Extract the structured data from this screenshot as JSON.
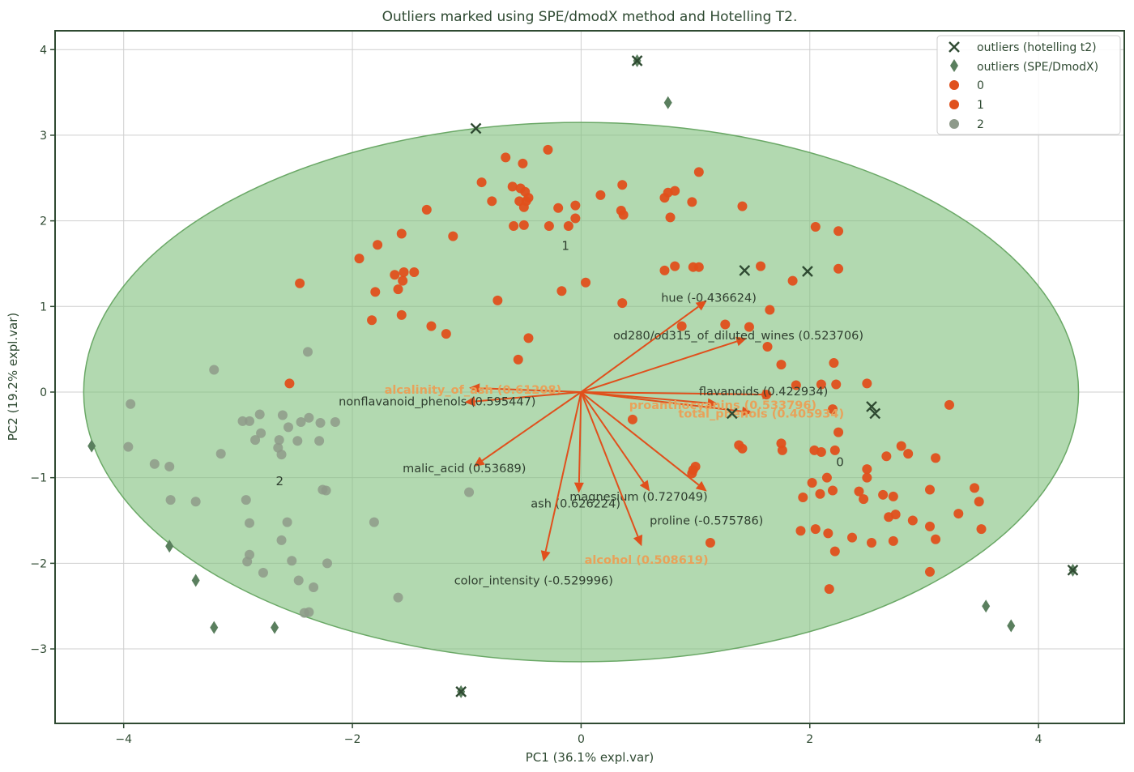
{
  "chart_data": {
    "type": "scatter",
    "title": "Outliers marked using SPE/dmodX method and Hotelling T2.",
    "xlabel": "PC1 (36.1% expl.var)",
    "ylabel": "PC2 (19.2% expl.var)",
    "xlim": [
      -4.6,
      4.75
    ],
    "ylim": [
      -3.87,
      4.22
    ],
    "xticks": [
      -4,
      -2,
      0,
      2,
      4
    ],
    "yticks": [
      -3,
      -2,
      -1,
      0,
      1,
      2,
      3,
      4
    ],
    "xtick_labels": [
      "−4",
      "−2",
      "0",
      "2",
      "4"
    ],
    "ytick_labels": [
      "−3",
      "−2",
      "−1",
      "0",
      "1",
      "2",
      "3",
      "4"
    ],
    "grid": true,
    "legend_position": "top-right",
    "colors": {
      "class_0": "#e0501c",
      "class_1": "#e0501c",
      "class_2": "#8e9a8a",
      "arrow": "#e0501c",
      "outlier_marker": "#2f4a32",
      "spe_marker": "#5a7f5e",
      "ellipse_fill": "#7fbf7b",
      "axes": "#2f4a32",
      "label_orange": "#e8a25a"
    },
    "legend": [
      {
        "label": "outliers (hotelling t2)",
        "marker": "x"
      },
      {
        "label": "outliers (SPE/DmodX)",
        "marker": "diamond"
      },
      {
        "label": "0",
        "marker": "circle-orange"
      },
      {
        "label": "1",
        "marker": "circle-orange"
      },
      {
        "label": "2",
        "marker": "circle-grey"
      }
    ],
    "ellipse": {
      "center": [
        0,
        0
      ],
      "width": 8.7,
      "height": 6.3
    },
    "class_labels": [
      {
        "text": "0",
        "x": 2.23,
        "y": -0.82
      },
      {
        "text": "1",
        "x": -0.17,
        "y": 1.71
      },
      {
        "text": "2",
        "x": -2.67,
        "y": -1.04
      }
    ],
    "loadings": [
      {
        "label": "hue (-0.436624)",
        "x": 1.1,
        "y": 1.07,
        "lx": 0.7,
        "ly": 1.1,
        "color": "dark"
      },
      {
        "label": "od280/od315_of_diluted_wines (0.523706)",
        "x": 1.45,
        "y": 0.63,
        "lx": 0.28,
        "ly": 0.66,
        "color": "dark"
      },
      {
        "label": "flavanoids (0.422934)",
        "x": 1.68,
        "y": -0.03,
        "lx": 1.03,
        "ly": 0.01,
        "color": "dark"
      },
      {
        "label": "total_phenols (0.405934)",
        "x": 1.5,
        "y": -0.24,
        "lx": 0.85,
        "ly": -0.25,
        "color": "orange"
      },
      {
        "label": "proanthocyanins (0.533796)",
        "x": 1.2,
        "y": -0.14,
        "lx": 0.42,
        "ly": -0.15,
        "color": "orange"
      },
      {
        "label": "alcalinity_of_ash (0.61208)",
        "x": -0.98,
        "y": 0.05,
        "lx": -1.72,
        "ly": 0.03,
        "color": "orange"
      },
      {
        "label": "nonflavanoid_phenols (0.595447)",
        "x": -1.02,
        "y": -0.12,
        "lx": -2.12,
        "ly": -0.11,
        "color": "dark"
      },
      {
        "label": "malic_acid (0.53689)",
        "x": -0.94,
        "y": -0.87,
        "lx": -1.56,
        "ly": -0.89,
        "color": "dark"
      },
      {
        "label": "ash (0.626224)",
        "x": -0.02,
        "y": -1.18,
        "lx": -0.44,
        "ly": -1.3,
        "color": "dark"
      },
      {
        "label": "magnesium (0.727049)",
        "x": 0.6,
        "y": -1.16,
        "lx": -0.1,
        "ly": -1.22,
        "color": "dark"
      },
      {
        "label": "proline (-0.575786)",
        "x": 1.1,
        "y": -1.16,
        "lx": 0.6,
        "ly": -1.5,
        "color": "dark"
      },
      {
        "label": "alcohol (0.508619)",
        "x": 0.53,
        "y": -1.8,
        "lx": 0.03,
        "ly": -1.96,
        "color": "orange"
      },
      {
        "label": "color_intensity (-0.529996)",
        "x": -0.33,
        "y": -1.98,
        "lx": -1.11,
        "ly": -2.2,
        "color": "dark"
      }
    ],
    "outliers_hotelling_t2": [
      {
        "x": -0.92,
        "y": 3.08
      },
      {
        "x": 0.49,
        "y": 3.87
      },
      {
        "x": 1.43,
        "y": 1.42
      },
      {
        "x": 1.98,
        "y": 1.41
      },
      {
        "x": 1.32,
        "y": -0.25
      },
      {
        "x": 2.54,
        "y": -0.17
      },
      {
        "x": 2.57,
        "y": -0.25
      },
      {
        "x": -1.05,
        "y": -3.5
      },
      {
        "x": 4.3,
        "y": -2.08
      }
    ],
    "outliers_spe_dmodx": [
      {
        "x": 0.49,
        "y": 3.87
      },
      {
        "x": 0.76,
        "y": 3.38
      },
      {
        "x": -4.28,
        "y": -0.63
      },
      {
        "x": -3.6,
        "y": -1.8
      },
      {
        "x": -3.37,
        "y": -2.2
      },
      {
        "x": -3.21,
        "y": -2.75
      },
      {
        "x": -2.68,
        "y": -2.75
      },
      {
        "x": -1.05,
        "y": -3.5
      },
      {
        "x": 4.3,
        "y": -2.08
      },
      {
        "x": 3.54,
        "y": -2.5
      },
      {
        "x": 3.76,
        "y": -2.73
      }
    ],
    "series": [
      {
        "name": "0",
        "points": [
          {
            "x": 2.5,
            "y": 0.1
          },
          {
            "x": 3.22,
            "y": -0.15
          },
          {
            "x": 2.23,
            "y": 0.09
          },
          {
            "x": 1.88,
            "y": 0.08
          },
          {
            "x": 2.1,
            "y": 0.09
          },
          {
            "x": 2.2,
            "y": -0.2
          },
          {
            "x": 2.22,
            "y": -0.68
          },
          {
            "x": 2.04,
            "y": -0.68
          },
          {
            "x": 1.75,
            "y": -0.6
          },
          {
            "x": 1.76,
            "y": -0.68
          },
          {
            "x": 2.67,
            "y": -0.75
          },
          {
            "x": 2.8,
            "y": -0.63
          },
          {
            "x": 2.86,
            "y": -0.72
          },
          {
            "x": 3.1,
            "y": -0.77
          },
          {
            "x": 2.5,
            "y": -0.9
          },
          {
            "x": 2.5,
            "y": -1.0
          },
          {
            "x": 2.15,
            "y": -1.0
          },
          {
            "x": 2.02,
            "y": -1.06
          },
          {
            "x": 2.2,
            "y": -1.15
          },
          {
            "x": 2.09,
            "y": -1.19
          },
          {
            "x": 1.94,
            "y": -1.23
          },
          {
            "x": 2.43,
            "y": -1.16
          },
          {
            "x": 2.47,
            "y": -1.25
          },
          {
            "x": 2.64,
            "y": -1.2
          },
          {
            "x": 2.73,
            "y": -1.22
          },
          {
            "x": 3.05,
            "y": -1.14
          },
          {
            "x": 3.44,
            "y": -1.12
          },
          {
            "x": 3.48,
            "y": -1.28
          },
          {
            "x": 3.3,
            "y": -1.42
          },
          {
            "x": 3.05,
            "y": -1.57
          },
          {
            "x": 2.9,
            "y": -1.5
          },
          {
            "x": 2.75,
            "y": -1.43
          },
          {
            "x": 2.69,
            "y": -1.46
          },
          {
            "x": 3.5,
            "y": -1.6
          },
          {
            "x": 3.1,
            "y": -1.72
          },
          {
            "x": 2.37,
            "y": -1.7
          },
          {
            "x": 2.54,
            "y": -1.76
          },
          {
            "x": 2.73,
            "y": -1.74
          },
          {
            "x": 2.16,
            "y": -1.65
          },
          {
            "x": 1.92,
            "y": -1.62
          },
          {
            "x": 2.05,
            "y": -1.6
          },
          {
            "x": 2.22,
            "y": -1.86
          },
          {
            "x": 3.05,
            "y": -2.1
          },
          {
            "x": 2.17,
            "y": -2.3
          },
          {
            "x": 1.63,
            "y": 0.53
          },
          {
            "x": 1.75,
            "y": 0.32
          },
          {
            "x": 2.21,
            "y": 0.34
          },
          {
            "x": 1.85,
            "y": 1.3
          },
          {
            "x": 1.57,
            "y": 1.47
          },
          {
            "x": 1.65,
            "y": 0.96
          },
          {
            "x": 1.47,
            "y": 0.76
          },
          {
            "x": 1.26,
            "y": 0.79
          },
          {
            "x": 2.25,
            "y": 1.88
          },
          {
            "x": 2.05,
            "y": 1.93
          },
          {
            "x": 2.25,
            "y": 1.44
          },
          {
            "x": 1.38,
            "y": -0.62
          },
          {
            "x": 1.41,
            "y": -0.66
          },
          {
            "x": 1.62,
            "y": -0.03
          },
          {
            "x": 2.25,
            "y": -0.47
          },
          {
            "x": 2.1,
            "y": -0.7
          }
        ]
      },
      {
        "name": "1",
        "points": [
          {
            "x": -0.66,
            "y": 2.74
          },
          {
            "x": -0.51,
            "y": 2.67
          },
          {
            "x": -0.29,
            "y": 2.83
          },
          {
            "x": -0.87,
            "y": 2.45
          },
          {
            "x": -0.6,
            "y": 2.4
          },
          {
            "x": -0.53,
            "y": 2.38
          },
          {
            "x": -0.49,
            "y": 2.34
          },
          {
            "x": -0.48,
            "y": 2.23
          },
          {
            "x": -0.54,
            "y": 2.23
          },
          {
            "x": -0.46,
            "y": 2.27
          },
          {
            "x": -0.78,
            "y": 2.23
          },
          {
            "x": -0.5,
            "y": 2.16
          },
          {
            "x": -0.2,
            "y": 2.15
          },
          {
            "x": -0.05,
            "y": 2.18
          },
          {
            "x": 0.17,
            "y": 2.3
          },
          {
            "x": 0.36,
            "y": 2.42
          },
          {
            "x": 0.76,
            "y": 2.33
          },
          {
            "x": 0.73,
            "y": 2.27
          },
          {
            "x": 0.97,
            "y": 2.22
          },
          {
            "x": 1.03,
            "y": 2.57
          },
          {
            "x": 0.35,
            "y": 2.12
          },
          {
            "x": 0.37,
            "y": 2.07
          },
          {
            "x": 0.78,
            "y": 2.04
          },
          {
            "x": 1.41,
            "y": 2.17
          },
          {
            "x": 0.82,
            "y": 2.35
          },
          {
            "x": -1.35,
            "y": 2.13
          },
          {
            "x": -0.59,
            "y": 1.94
          },
          {
            "x": -0.5,
            "y": 1.95
          },
          {
            "x": -0.28,
            "y": 1.94
          },
          {
            "x": -0.11,
            "y": 1.94
          },
          {
            "x": -0.05,
            "y": 2.03
          },
          {
            "x": -1.12,
            "y": 1.82
          },
          {
            "x": -1.94,
            "y": 1.56
          },
          {
            "x": -1.78,
            "y": 1.72
          },
          {
            "x": -1.57,
            "y": 1.85
          },
          {
            "x": -1.63,
            "y": 1.37
          },
          {
            "x": -1.55,
            "y": 1.4
          },
          {
            "x": -1.46,
            "y": 1.4
          },
          {
            "x": -1.56,
            "y": 1.3
          },
          {
            "x": -2.46,
            "y": 1.27
          },
          {
            "x": -1.8,
            "y": 1.17
          },
          {
            "x": -1.6,
            "y": 1.2
          },
          {
            "x": -1.83,
            "y": 0.84
          },
          {
            "x": -1.57,
            "y": 0.9
          },
          {
            "x": -1.31,
            "y": 0.77
          },
          {
            "x": -1.18,
            "y": 0.68
          },
          {
            "x": -0.73,
            "y": 1.07
          },
          {
            "x": -0.17,
            "y": 1.18
          },
          {
            "x": 0.04,
            "y": 1.28
          },
          {
            "x": 0.36,
            "y": 1.04
          },
          {
            "x": 0.73,
            "y": 1.42
          },
          {
            "x": 0.82,
            "y": 1.47
          },
          {
            "x": 0.98,
            "y": 1.46
          },
          {
            "x": 1.03,
            "y": 1.46
          },
          {
            "x": 0.88,
            "y": 0.77
          },
          {
            "x": -0.46,
            "y": 0.63
          },
          {
            "x": -0.55,
            "y": 0.38
          },
          {
            "x": -2.55,
            "y": 0.1
          },
          {
            "x": 0.45,
            "y": -0.32
          },
          {
            "x": 0.98,
            "y": -0.91
          },
          {
            "x": 1.0,
            "y": -0.87
          },
          {
            "x": 0.97,
            "y": -0.95
          },
          {
            "x": 1.13,
            "y": -1.76
          }
        ]
      },
      {
        "name": "2",
        "points": [
          {
            "x": -2.39,
            "y": 0.47
          },
          {
            "x": -3.21,
            "y": 0.26
          },
          {
            "x": -3.94,
            "y": -0.14
          },
          {
            "x": -2.9,
            "y": -0.34
          },
          {
            "x": -2.96,
            "y": -0.34
          },
          {
            "x": -2.81,
            "y": -0.26
          },
          {
            "x": -2.61,
            "y": -0.27
          },
          {
            "x": -2.38,
            "y": -0.3
          },
          {
            "x": -2.28,
            "y": -0.36
          },
          {
            "x": -2.45,
            "y": -0.35
          },
          {
            "x": -2.15,
            "y": -0.35
          },
          {
            "x": -2.56,
            "y": -0.41
          },
          {
            "x": -2.8,
            "y": -0.48
          },
          {
            "x": -2.85,
            "y": -0.56
          },
          {
            "x": -2.64,
            "y": -0.56
          },
          {
            "x": -2.48,
            "y": -0.57
          },
          {
            "x": -2.29,
            "y": -0.57
          },
          {
            "x": -2.65,
            "y": -0.65
          },
          {
            "x": -2.62,
            "y": -0.73
          },
          {
            "x": -3.15,
            "y": -0.72
          },
          {
            "x": -3.96,
            "y": -0.64
          },
          {
            "x": -3.73,
            "y": -0.84
          },
          {
            "x": -3.6,
            "y": -0.87
          },
          {
            "x": -3.59,
            "y": -1.26
          },
          {
            "x": -3.37,
            "y": -1.28
          },
          {
            "x": -2.93,
            "y": -1.26
          },
          {
            "x": -2.23,
            "y": -1.15
          },
          {
            "x": -2.26,
            "y": -1.14
          },
          {
            "x": -2.9,
            "y": -1.53
          },
          {
            "x": -2.57,
            "y": -1.52
          },
          {
            "x": -2.62,
            "y": -1.73
          },
          {
            "x": -2.9,
            "y": -1.9
          },
          {
            "x": -2.92,
            "y": -1.98
          },
          {
            "x": -2.78,
            "y": -2.11
          },
          {
            "x": -2.53,
            "y": -1.97
          },
          {
            "x": -2.47,
            "y": -2.2
          },
          {
            "x": -2.34,
            "y": -2.28
          },
          {
            "x": -2.22,
            "y": -2.0
          },
          {
            "x": -2.38,
            "y": -2.57
          },
          {
            "x": -2.42,
            "y": -2.58
          },
          {
            "x": -1.81,
            "y": -1.52
          },
          {
            "x": -1.6,
            "y": -2.4
          },
          {
            "x": -0.98,
            "y": -1.17
          }
        ]
      }
    ]
  }
}
